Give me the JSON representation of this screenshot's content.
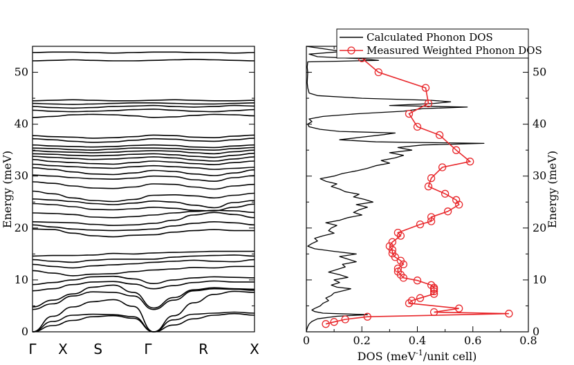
{
  "chart_data": [
    {
      "type": "line",
      "panel": "phonon-dispersion",
      "ylabel": "Energy (meV)",
      "ylim": [
        0,
        55
      ],
      "y_ticks": [
        "0",
        "10",
        "20",
        "30",
        "40",
        "50"
      ],
      "k_points": [
        "Γ",
        "X",
        "S",
        "Γ",
        "R",
        "X"
      ],
      "bands": [
        [
          0.0,
          1.2,
          2.2,
          2.9,
          3.1,
          2.6,
          0.0,
          1.3,
          2.5,
          3.2,
          3.5,
          3.2
        ],
        [
          0.0,
          2.0,
          3.2,
          3.4,
          3.3,
          2.9,
          0.0,
          2.3,
          3.4,
          3.6,
          3.8,
          3.6
        ],
        [
          0.0,
          3.0,
          4.8,
          5.8,
          6.2,
          4.9,
          0.0,
          3.1,
          5.6,
          7.2,
          7.8,
          7.6
        ],
        [
          4.3,
          5.4,
          6.9,
          7.7,
          7.6,
          6.9,
          4.3,
          6.1,
          7.9,
          8.3,
          8.2,
          8.0
        ],
        [
          4.8,
          6.1,
          7.3,
          8.6,
          9.0,
          7.6,
          4.6,
          6.6,
          8.1,
          8.5,
          8.3,
          8.2
        ],
        [
          7.9,
          8.3,
          9.1,
          9.6,
          9.7,
          9.2,
          8.3,
          8.9,
          9.5,
          9.8,
          9.6,
          9.6
        ],
        [
          9.1,
          9.5,
          10.0,
          10.6,
          10.7,
          10.2,
          9.3,
          10.0,
          10.4,
          10.6,
          10.5,
          10.4
        ],
        [
          11.8,
          11.3,
          10.8,
          11.1,
          11.2,
          11.6,
          11.9,
          12.1,
          12.4,
          12.3,
          12.6,
          12.6
        ],
        [
          13.0,
          12.6,
          12.3,
          12.7,
          12.9,
          13.1,
          13.4,
          13.6,
          13.8,
          13.6,
          13.5,
          13.9
        ],
        [
          13.9,
          13.6,
          13.4,
          13.8,
          14.0,
          14.0,
          14.0,
          14.4,
          14.6,
          14.7,
          14.8,
          14.6
        ],
        [
          14.6,
          14.7,
          14.7,
          14.8,
          15.1,
          15.0,
          15.2,
          15.3,
          15.4,
          15.5,
          15.5,
          15.5
        ],
        [
          19.8,
          19.7,
          19.0,
          18.5,
          18.3,
          18.6,
          18.7,
          19.2,
          19.5,
          19.7,
          19.5,
          19.5
        ],
        [
          20.6,
          20.2,
          19.8,
          19.6,
          19.5,
          19.6,
          19.8,
          20.4,
          20.9,
          21.2,
          21.0,
          20.6
        ],
        [
          21.2,
          21.1,
          21.0,
          20.7,
          20.5,
          20.6,
          20.9,
          21.5,
          22.5,
          23.0,
          22.6,
          22.0
        ],
        [
          22.9,
          22.8,
          22.6,
          22.1,
          22.0,
          22.2,
          22.5,
          22.9,
          23.2,
          23.4,
          23.3,
          23.0
        ],
        [
          24.7,
          24.5,
          24.1,
          23.6,
          23.5,
          23.7,
          24.0,
          23.8,
          23.4,
          23.3,
          24.0,
          24.6
        ],
        [
          25.6,
          25.4,
          25.1,
          24.7,
          24.5,
          24.8,
          25.2,
          25.0,
          24.4,
          23.9,
          24.9,
          25.3
        ],
        [
          27.1,
          26.6,
          25.8,
          25.3,
          25.1,
          25.5,
          26.3,
          26.4,
          26.2,
          25.8,
          26.3,
          26.7
        ],
        [
          28.9,
          28.6,
          28.1,
          27.7,
          27.6,
          27.9,
          28.5,
          28.4,
          27.9,
          27.5,
          28.1,
          28.4
        ],
        [
          30.2,
          30.0,
          29.7,
          29.5,
          29.4,
          29.6,
          30.0,
          29.9,
          29.3,
          29.0,
          29.7,
          30.1
        ],
        [
          31.6,
          31.3,
          30.8,
          30.4,
          30.3,
          30.6,
          31.1,
          30.9,
          30.4,
          30.1,
          30.6,
          31.2
        ],
        [
          32.3,
          32.0,
          31.8,
          31.6,
          31.5,
          31.8,
          32.0,
          31.8,
          31.6,
          31.3,
          31.5,
          31.7
        ],
        [
          33.2,
          32.8,
          32.6,
          32.4,
          32.3,
          32.6,
          32.9,
          32.7,
          32.4,
          32.2,
          32.6,
          32.9
        ],
        [
          33.8,
          33.6,
          33.4,
          33.2,
          33.3,
          33.5,
          33.7,
          33.5,
          33.1,
          32.9,
          33.3,
          33.7
        ],
        [
          34.3,
          34.2,
          34.0,
          33.9,
          34.0,
          34.2,
          34.3,
          34.1,
          33.8,
          33.6,
          34.0,
          34.4
        ],
        [
          34.9,
          34.7,
          34.6,
          34.5,
          34.6,
          34.8,
          34.9,
          34.8,
          34.5,
          34.3,
          34.7,
          35.0
        ],
        [
          35.4,
          35.3,
          35.1,
          35.0,
          35.2,
          35.4,
          35.4,
          35.3,
          35.1,
          35.0,
          35.3,
          35.5
        ],
        [
          36.0,
          35.8,
          35.7,
          35.6,
          35.7,
          35.9,
          36.0,
          35.9,
          35.6,
          35.5,
          35.8,
          36.0
        ],
        [
          37.2,
          37.0,
          36.7,
          36.5,
          36.6,
          36.9,
          37.2,
          37.1,
          36.8,
          36.7,
          37.0,
          37.3
        ],
        [
          37.8,
          37.6,
          37.5,
          37.3,
          37.4,
          37.6,
          37.9,
          37.8,
          37.5,
          37.4,
          37.7,
          37.9
        ],
        [
          41.3,
          41.5,
          41.8,
          41.9,
          41.8,
          41.6,
          41.3,
          41.4,
          41.7,
          41.9,
          41.8,
          41.6
        ],
        [
          42.7,
          42.5,
          42.4,
          42.5,
          42.6,
          42.8,
          42.9,
          42.7,
          42.5,
          42.4,
          42.6,
          42.8
        ],
        [
          43.4,
          43.2,
          43.1,
          43.2,
          43.4,
          43.5,
          43.6,
          43.4,
          43.3,
          43.4,
          43.6,
          43.5
        ],
        [
          44.0,
          43.9,
          43.8,
          43.9,
          44.0,
          44.1,
          44.1,
          44.0,
          43.9,
          43.9,
          44.0,
          44.1
        ],
        [
          44.5,
          44.6,
          44.7,
          44.6,
          44.5,
          44.5,
          44.6,
          44.7,
          44.6,
          44.5,
          44.5,
          44.6
        ],
        [
          52.2,
          52.3,
          52.4,
          52.3,
          52.2,
          52.2,
          52.3,
          52.4,
          52.5,
          52.4,
          52.3,
          52.2
        ],
        [
          53.8,
          53.9,
          53.9,
          53.8,
          53.7,
          53.8,
          53.9,
          53.9,
          53.8,
          53.8,
          53.7,
          53.8
        ]
      ]
    },
    {
      "type": "line",
      "panel": "phonon-dos",
      "xlabel_main": "DOS (meV",
      "xlabel_sup": "-1",
      "xlabel_rest": "/unit cell)",
      "ylabel": "Energy (meV)",
      "xlim": [
        0,
        0.8
      ],
      "ylim": [
        0,
        55
      ],
      "x_ticks": [
        "0",
        "0.2",
        "0.4",
        "0.6",
        "0.8"
      ],
      "y_ticks": [
        "0",
        "10",
        "20",
        "30",
        "40",
        "50"
      ],
      "legend_position": "top-right",
      "colors": {
        "calculated": "#000000",
        "measured": "#e8262a"
      },
      "series": [
        {
          "name": "Calculated Phonon DOS",
          "energy": [
            0,
            0.5,
            1,
            1.5,
            2,
            2.5,
            3,
            3.3,
            3.6,
            3.9,
            4.2,
            4.5,
            5,
            5.5,
            6,
            6.5,
            7,
            7.5,
            8,
            8.3,
            8.6,
            9,
            9.5,
            10,
            10.5,
            11,
            11.5,
            12,
            12.5,
            13,
            13.5,
            14,
            14.5,
            15,
            15.5,
            16,
            16.5,
            17,
            17.5,
            18,
            18.5,
            19,
            19.5,
            20,
            20.5,
            21,
            21.5,
            22,
            22.5,
            23,
            23.5,
            24,
            24.5,
            25,
            25.5,
            26,
            26.5,
            27,
            27.5,
            28,
            28.5,
            29,
            29.5,
            30,
            30.5,
            31,
            31.5,
            32,
            32.5,
            33,
            33.5,
            34,
            34.5,
            35,
            35.5,
            36,
            36.3,
            36.6,
            37,
            37.5,
            38,
            38.3,
            38.6,
            39,
            39.5,
            40,
            40.5,
            41,
            41.5,
            42,
            42.5,
            43,
            43.3,
            43.6,
            44,
            44.3,
            44.6,
            45,
            45.5,
            46,
            47,
            48,
            49,
            50,
            51,
            52,
            52.3,
            52.6,
            53,
            53.5,
            54,
            55
          ],
          "dos": [
            0,
            0.002,
            0.005,
            0.01,
            0.02,
            0.04,
            0.11,
            0.22,
            0.06,
            0.03,
            0.02,
            0.03,
            0.05,
            0.06,
            0.08,
            0.07,
            0.09,
            0.1,
            0.14,
            0.16,
            0.11,
            0.09,
            0.12,
            0.1,
            0.15,
            0.12,
            0.08,
            0.11,
            0.14,
            0.13,
            0.18,
            0.15,
            0.12,
            0.18,
            0.1,
            0.03,
            0.005,
            0.02,
            0.04,
            0.03,
            0.06,
            0.1,
            0.08,
            0.09,
            0.11,
            0.07,
            0.12,
            0.15,
            0.2,
            0.17,
            0.19,
            0.22,
            0.18,
            0.24,
            0.21,
            0.17,
            0.19,
            0.14,
            0.12,
            0.09,
            0.11,
            0.07,
            0.05,
            0.1,
            0.13,
            0.18,
            0.22,
            0.25,
            0.3,
            0.27,
            0.32,
            0.35,
            0.3,
            0.38,
            0.33,
            0.42,
            0.64,
            0.25,
            0.12,
            0.2,
            0.28,
            0.32,
            0.12,
            0.05,
            0.01,
            0.005,
            0.02,
            0.01,
            0.06,
            0.18,
            0.35,
            0.42,
            0.58,
            0.3,
            0.46,
            0.52,
            0.45,
            0.2,
            0.04,
            0.01,
            0.005,
            0.003,
            0.004,
            0.005,
            0.003,
            0.005,
            0.26,
            0.2,
            0.04,
            0.01,
            0.13,
            0.0
          ]
        },
        {
          "name": "Measured Weighted Phonon DOS",
          "energy": [
            1.5,
            1.9,
            2.4,
            2.9,
            3.5,
            3.8,
            4.5,
            5.5,
            6.0,
            6.5,
            7.3,
            7.8,
            8.2,
            8.5,
            9.0,
            9.9,
            10.4,
            11.0,
            11.6,
            12.2,
            13.0,
            13.7,
            14.4,
            15.1,
            15.8,
            16.5,
            17.3,
            18.5,
            19.1,
            20.7,
            21.3,
            22.1,
            23.2,
            24.5,
            25.4,
            26.6,
            28.0,
            29.6,
            31.7,
            32.8,
            35.0,
            37.9,
            39.5,
            42.0,
            44.0,
            47.0,
            50.0,
            52.7
          ],
          "dos": [
            0.07,
            0.1,
            0.14,
            0.22,
            0.73,
            0.46,
            0.55,
            0.37,
            0.38,
            0.41,
            0.46,
            0.46,
            0.46,
            0.46,
            0.45,
            0.4,
            0.35,
            0.34,
            0.33,
            0.33,
            0.35,
            0.34,
            0.32,
            0.31,
            0.31,
            0.3,
            0.31,
            0.34,
            0.33,
            0.41,
            0.45,
            0.45,
            0.51,
            0.55,
            0.54,
            0.5,
            0.44,
            0.45,
            0.49,
            0.59,
            0.54,
            0.48,
            0.4,
            0.37,
            0.44,
            0.43,
            0.26,
            0.2
          ]
        }
      ]
    }
  ]
}
